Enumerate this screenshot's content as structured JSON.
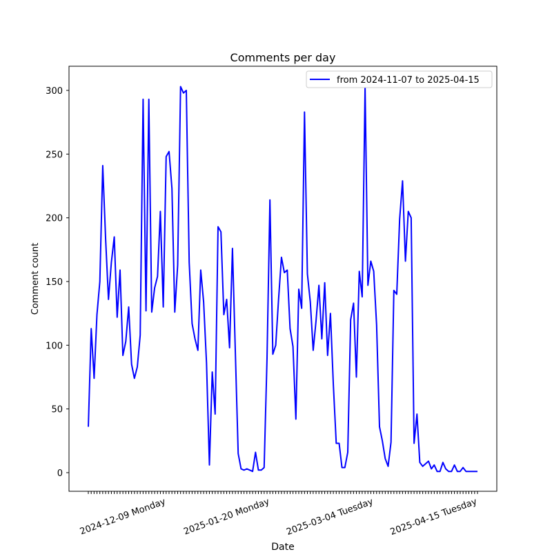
{
  "chart_data": {
    "type": "line",
    "title": "Comments per day",
    "xlabel": "Date",
    "ylabel": "Comment count",
    "ylim": [
      -15,
      318
    ],
    "yticks": [
      0,
      50,
      100,
      150,
      200,
      250,
      300
    ],
    "x_start": "2024-11-07",
    "x_end": "2025-04-15",
    "grid": false,
    "legend_position": "top-right",
    "series": [
      {
        "name": "from 2024-11-07 to 2025-04-15",
        "color": "#0000ff",
        "values": [
          36,
          113,
          74,
          124,
          150,
          241,
          183,
          136,
          165,
          185,
          122,
          159,
          92,
          103,
          130,
          85,
          74,
          83,
          108,
          293,
          127,
          293,
          126,
          145,
          154,
          205,
          130,
          248,
          252,
          223,
          126,
          163,
          303,
          298,
          300,
          165,
          117,
          105,
          96,
          159,
          134,
          86,
          6,
          79,
          46,
          193,
          189,
          124,
          136,
          98,
          176,
          94,
          15,
          3,
          2,
          3,
          2,
          1,
          16,
          2,
          2,
          4,
          90,
          214,
          93,
          100,
          136,
          169,
          157,
          159,
          113,
          99,
          42,
          144,
          129,
          283,
          156,
          134,
          96,
          119,
          147,
          105,
          149,
          92,
          125,
          69,
          23,
          23,
          4,
          4,
          16,
          120,
          133,
          75,
          158,
          138,
          303,
          147,
          166,
          158,
          116,
          36,
          25,
          11,
          5,
          24,
          143,
          140,
          199,
          229,
          166,
          205,
          200,
          23,
          46,
          8,
          5,
          7,
          9,
          3,
          6,
          1,
          1,
          8,
          3,
          1,
          1,
          6,
          1,
          1,
          4,
          1,
          1,
          1,
          1,
          1
        ]
      }
    ]
  }
}
